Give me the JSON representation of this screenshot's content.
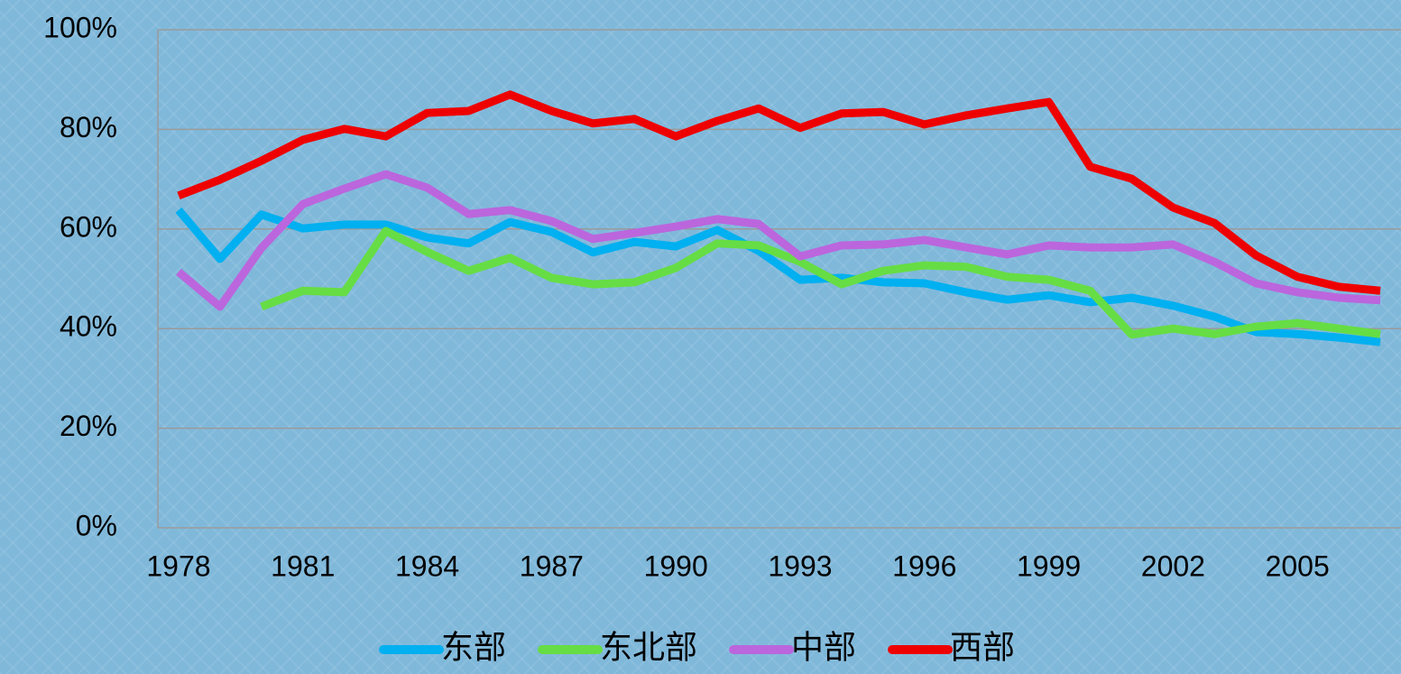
{
  "chart_data": {
    "type": "line",
    "x": [
      1978,
      1979,
      1980,
      1981,
      1982,
      1983,
      1984,
      1985,
      1986,
      1987,
      1988,
      1989,
      1990,
      1991,
      1992,
      1993,
      1994,
      1995,
      1996,
      1997,
      1998,
      1999,
      2000,
      2001,
      2002,
      2003,
      2004,
      2005,
      2006,
      2007
    ],
    "xlim": [
      1977.5,
      2007.5
    ],
    "xticks": [
      1978,
      1981,
      1984,
      1987,
      1990,
      1993,
      1996,
      1999,
      2002,
      2005
    ],
    "ylim": [
      0,
      100
    ],
    "yticks": [
      {
        "value": 0,
        "label": "0%"
      },
      {
        "value": 20,
        "label": "20%"
      },
      {
        "value": 40,
        "label": "40%"
      },
      {
        "value": 60,
        "label": "60%"
      },
      {
        "value": 80,
        "label": "80%"
      },
      {
        "value": 100,
        "label": "100%"
      }
    ],
    "grid": true,
    "legend": "bottom",
    "series": [
      {
        "name": "东部",
        "color": "#00b0f0",
        "values": [
          63.8,
          54,
          62.9,
          60.1,
          60.9,
          60.9,
          58.3,
          57.1,
          61.4,
          59.4,
          55.3,
          57.4,
          56.5,
          59.8,
          55.6,
          49.8,
          50.2,
          49.3,
          49.1,
          47.3,
          45.8,
          46.7,
          45.3,
          46.2,
          44.6,
          42.4,
          39.3,
          38.9,
          38.2,
          37.3
        ]
      },
      {
        "name": "东北部",
        "color": "#66dd44",
        "values": [
          null,
          null,
          44.4,
          47.6,
          47.3,
          59.6,
          55.4,
          51.6,
          54.2,
          50.2,
          48.9,
          49.3,
          52.2,
          57.1,
          56.7,
          53.4,
          48.9,
          51.6,
          52.7,
          52.4,
          50.4,
          49.8,
          47.6,
          38.8,
          40,
          38.9,
          40.4,
          41.1,
          40,
          38.9
        ]
      },
      {
        "name": "中部",
        "color": "#bb66dd",
        "values": [
          51.4,
          44.4,
          56.2,
          65,
          68.1,
          71,
          68.3,
          63,
          63.8,
          61.6,
          58,
          59.2,
          60.5,
          62,
          61,
          54.5,
          56.7,
          56.9,
          57.8,
          56.3,
          54.9,
          56.7,
          56.3,
          56.3,
          56.9,
          53.4,
          49.1,
          47.3,
          46.2,
          45.7
        ]
      },
      {
        "name": "西部",
        "color": "#ee0000",
        "values": [
          66.7,
          69.9,
          73.7,
          77.9,
          80.1,
          78.6,
          83.3,
          83.7,
          87,
          83.7,
          81.2,
          82.1,
          78.6,
          81.7,
          84.2,
          80.3,
          83.2,
          83.5,
          81,
          82.8,
          84.2,
          85.5,
          72.5,
          70.1,
          64.3,
          61.2,
          54.7,
          50.4,
          48.4,
          47.6
        ]
      }
    ]
  }
}
